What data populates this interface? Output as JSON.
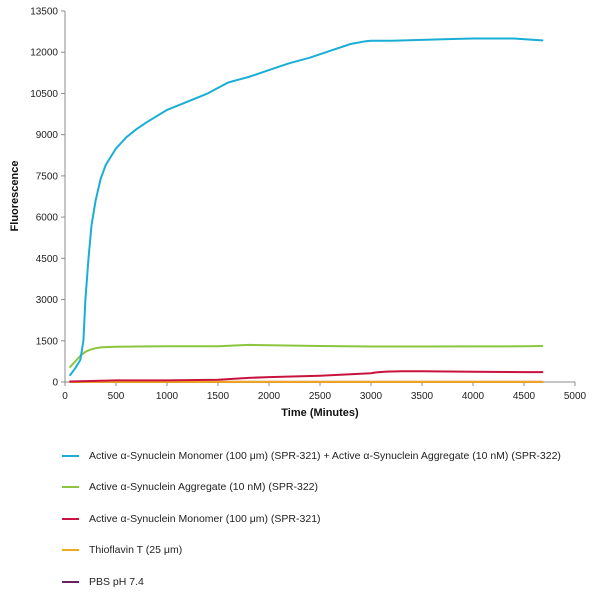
{
  "chart_data": {
    "type": "line",
    "title": "",
    "xlabel": "Time (Minutes)",
    "ylabel": "Fluorescence",
    "xlim": [
      0,
      5000
    ],
    "ylim": [
      0,
      13500
    ],
    "xticks": [
      "0",
      "500",
      "1000",
      "1500",
      "2000",
      "2500",
      "3000",
      "3500",
      "4000",
      "4500",
      "5000"
    ],
    "yticks": [
      "0",
      "1500",
      "3000",
      "4500",
      "6000",
      "7500",
      "9000",
      "10500",
      "12000",
      "13500"
    ],
    "grid": false,
    "legend_position": "bottom",
    "series": [
      {
        "name": "Active α-Synuclein Monomer (100 μm) (SPR-321) + Active α-Synuclein Aggregate (10 nM) (SPR-322)",
        "color": "#1aaed6",
        "x": [
          50,
          100,
          150,
          180,
          200,
          230,
          260,
          300,
          350,
          400,
          500,
          600,
          700,
          800,
          1000,
          1200,
          1400,
          1500,
          1600,
          1700,
          1800,
          2000,
          2200,
          2400,
          2600,
          2800,
          2950,
          3000,
          3100,
          3200,
          3500,
          3800,
          4000,
          4200,
          4400,
          4600,
          4680
        ],
        "y": [
          250,
          500,
          800,
          1500,
          3000,
          4500,
          5700,
          6600,
          7400,
          7900,
          8500,
          8900,
          9200,
          9450,
          9900,
          10200,
          10500,
          10700,
          10900,
          11000,
          11100,
          11350,
          11600,
          11800,
          12050,
          12300,
          12400,
          12420,
          12420,
          12420,
          12450,
          12480,
          12500,
          12500,
          12500,
          12450,
          12430
        ]
      },
      {
        "name": "Active α-Synuclein Aggregate (10 nM) (SPR-322)",
        "color": "#8cc63f",
        "x": [
          50,
          100,
          150,
          200,
          250,
          300,
          350,
          400,
          500,
          700,
          1000,
          1500,
          1800,
          2000,
          2500,
          3000,
          3500,
          4000,
          4500,
          4680
        ],
        "y": [
          550,
          750,
          950,
          1100,
          1180,
          1230,
          1260,
          1270,
          1280,
          1290,
          1300,
          1300,
          1350,
          1340,
          1310,
          1290,
          1290,
          1295,
          1300,
          1310
        ]
      },
      {
        "name": "Active α-Synuclein Monomer (100 μm) (SPR-321)",
        "color": "#c8143c",
        "x": [
          50,
          300,
          500,
          1000,
          1500,
          1800,
          2000,
          2500,
          2800,
          3000,
          3050,
          3150,
          3300,
          3500,
          4000,
          4500,
          4680
        ],
        "y": [
          20,
          40,
          60,
          60,
          80,
          150,
          180,
          230,
          280,
          320,
          350,
          380,
          390,
          390,
          370,
          360,
          360
        ]
      },
      {
        "name": "Thioflavin T (25 μm)",
        "color": "#f5a81c",
        "x": [
          50,
          1000,
          2000,
          3000,
          4000,
          4680
        ],
        "y": [
          5,
          5,
          5,
          5,
          5,
          5
        ]
      },
      {
        "name": "PBS pH 7.4",
        "color": "#6a1f5f",
        "x": [
          50,
          1000,
          2000,
          3000,
          4000,
          4680
        ],
        "y": [
          2,
          2,
          2,
          2,
          2,
          2
        ]
      }
    ]
  },
  "legend": {
    "items": [
      {
        "label": "Active α-Synuclein Monomer (100 μm) (SPR-321) + Active α-Synuclein Aggregate (10 nM) (SPR-322)",
        "color": "#1aaed6"
      },
      {
        "label": "Active α-Synuclein Aggregate (10 nM) (SPR-322)",
        "color": "#8cc63f"
      },
      {
        "label": "Active α-Synuclein Monomer (100 μm) (SPR-321)",
        "color": "#c8143c"
      },
      {
        "label": "Thioflavin T (25 μm)",
        "color": "#f5a81c"
      },
      {
        "label": "PBS pH 7.4",
        "color": "#6a1f5f"
      }
    ]
  }
}
